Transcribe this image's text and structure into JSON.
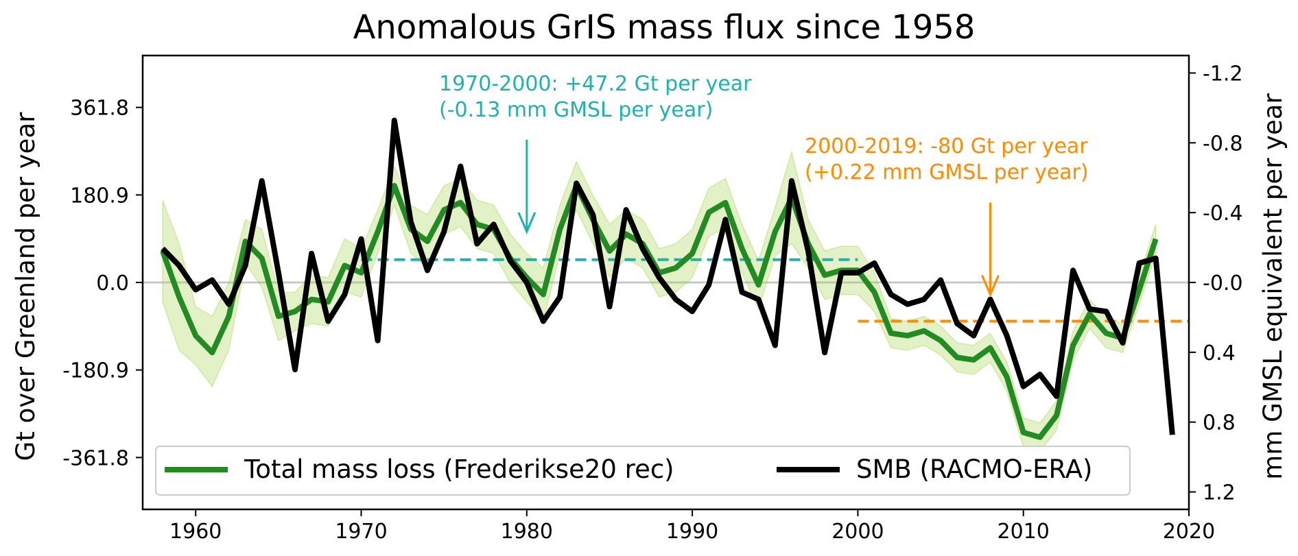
{
  "chart_data": {
    "type": "line",
    "title": "Anomalous GrIS mass flux since 1958",
    "ylabel": "Gt over Greenland per year",
    "ylabel_right": "mm GMSL equivalent per year",
    "xlim": [
      1956.8,
      2020
    ],
    "ylim": [
      -469,
      469
    ],
    "xticks": [
      1960,
      1970,
      1980,
      1990,
      2000,
      2010,
      2020
    ],
    "yticks": [
      361.8,
      180.9,
      0.0,
      -180.9,
      -361.8
    ],
    "ytick_labels": [
      "361.8",
      "180.9",
      "0.0",
      "-180.9",
      "-361.8"
    ],
    "y2lim": [
      1.3,
      -1.3
    ],
    "y2ticks": [
      -1.2,
      -0.8,
      -0.4,
      -0.0,
      0.4,
      0.8,
      1.2
    ],
    "y2tick_labels": [
      "-1.2",
      "-0.8",
      "-0.4",
      "-0.0",
      "0.4",
      "0.8",
      "1.2"
    ],
    "legend": {
      "placement": "lower center",
      "entries": [
        "Total mass loss (Frederikse20 rec)",
        "SMB (RACMO-ERA)"
      ]
    },
    "series": [
      {
        "name": "Total mass loss (Frederikse20 rec)",
        "color": "#228B22",
        "x": [
          1958,
          1959,
          1960,
          1961,
          1962,
          1963,
          1964,
          1965,
          1966,
          1967,
          1968,
          1969,
          1970,
          1971,
          1972,
          1973,
          1974,
          1975,
          1976,
          1977,
          1978,
          1979,
          1980,
          1981,
          1982,
          1983,
          1984,
          1985,
          1986,
          1987,
          1988,
          1989,
          1990,
          1991,
          1992,
          1993,
          1994,
          1995,
          1996,
          1997,
          1998,
          1999,
          2000,
          2001,
          2002,
          2003,
          2004,
          2005,
          2006,
          2007,
          2008,
          2009,
          2010,
          2011,
          2012,
          2013,
          2014,
          2015,
          2016,
          2017,
          2018
        ],
        "y": [
          65,
          -30,
          -110,
          -145,
          -70,
          85,
          50,
          -70,
          -60,
          -35,
          -40,
          35,
          20,
          105,
          200,
          110,
          85,
          150,
          165,
          120,
          110,
          50,
          10,
          -25,
          110,
          200,
          130,
          65,
          100,
          80,
          20,
          30,
          60,
          145,
          165,
          70,
          -5,
          105,
          175,
          80,
          15,
          25,
          25,
          -20,
          -105,
          -110,
          -100,
          -120,
          -155,
          -160,
          -135,
          -195,
          -310,
          -320,
          -275,
          -130,
          -65,
          -105,
          -115,
          -15,
          90
        ],
        "band_upper": [
          170,
          80,
          -50,
          -70,
          0,
          130,
          110,
          -20,
          -20,
          15,
          10,
          90,
          70,
          150,
          240,
          160,
          140,
          200,
          215,
          170,
          160,
          100,
          60,
          30,
          160,
          250,
          180,
          120,
          150,
          130,
          70,
          80,
          110,
          195,
          215,
          120,
          45,
          155,
          270,
          130,
          65,
          75,
          75,
          20,
          -75,
          -80,
          -70,
          -90,
          -125,
          -130,
          -105,
          -165,
          -280,
          -290,
          -245,
          -100,
          -35,
          -75,
          -85,
          15,
          120
        ],
        "band_lower": [
          -40,
          -140,
          -170,
          -215,
          -140,
          40,
          -10,
          -120,
          -100,
          -85,
          -90,
          -20,
          -30,
          60,
          160,
          60,
          30,
          100,
          115,
          70,
          60,
          0,
          -40,
          -80,
          60,
          150,
          80,
          10,
          50,
          30,
          -30,
          -20,
          10,
          95,
          115,
          20,
          -55,
          55,
          80,
          30,
          -35,
          -25,
          -25,
          -60,
          -135,
          -140,
          -130,
          -150,
          -185,
          -190,
          -165,
          -225,
          -340,
          -350,
          -305,
          -160,
          -95,
          -135,
          -145,
          -45,
          60
        ],
        "band_color": "#9ACD32"
      },
      {
        "name": "SMB (RACMO-ERA)",
        "color": "#000000",
        "x": [
          1958,
          1959,
          1960,
          1961,
          1962,
          1963,
          1964,
          1965,
          1966,
          1967,
          1968,
          1969,
          1970,
          1971,
          1972,
          1973,
          1974,
          1975,
          1976,
          1977,
          1978,
          1979,
          1980,
          1981,
          1982,
          1983,
          1984,
          1985,
          1986,
          1987,
          1988,
          1989,
          1990,
          1991,
          1992,
          1993,
          1994,
          1995,
          1996,
          1997,
          1998,
          1999,
          2000,
          2001,
          2002,
          2003,
          2004,
          2005,
          2006,
          2007,
          2008,
          2009,
          2010,
          2011,
          2012,
          2013,
          2014,
          2015,
          2016,
          2017,
          2018,
          2019
        ],
        "y": [
          70,
          35,
          -15,
          5,
          -45,
          35,
          210,
          20,
          -180,
          60,
          -80,
          -25,
          90,
          -120,
          335,
          125,
          25,
          105,
          240,
          80,
          120,
          45,
          0,
          -80,
          -30,
          205,
          140,
          -50,
          150,
          70,
          10,
          -35,
          -60,
          -5,
          130,
          -20,
          -35,
          -130,
          210,
          65,
          -145,
          20,
          20,
          40,
          -25,
          -45,
          -35,
          5,
          -85,
          -110,
          -35,
          -110,
          -215,
          -190,
          -235,
          25,
          -55,
          -60,
          -125,
          40,
          50,
          -315
        ]
      }
    ],
    "annotations": [
      {
        "text_line1": "1970-2000: +47.2 Gt per year",
        "text_line2": "(-0.13 mm GMSL per year)",
        "color": "#20B2AA",
        "trend_x": [
          1970,
          2000
        ],
        "trend_y": 47.2,
        "arrow_x": 1980,
        "arrow_y_from": 295,
        "arrow_y_to": 105
      },
      {
        "text_line1": "2000-2019: -80 Gt per year",
        "text_line2": "(+0.22 mm GMSL per year)",
        "color": "#FF8C00",
        "trend_x": [
          2000,
          2020
        ],
        "trend_y": -80,
        "arrow_x": 2008,
        "arrow_y_from": 165,
        "arrow_y_to": -25
      }
    ],
    "zero_line_color": "#C8C8C8"
  }
}
